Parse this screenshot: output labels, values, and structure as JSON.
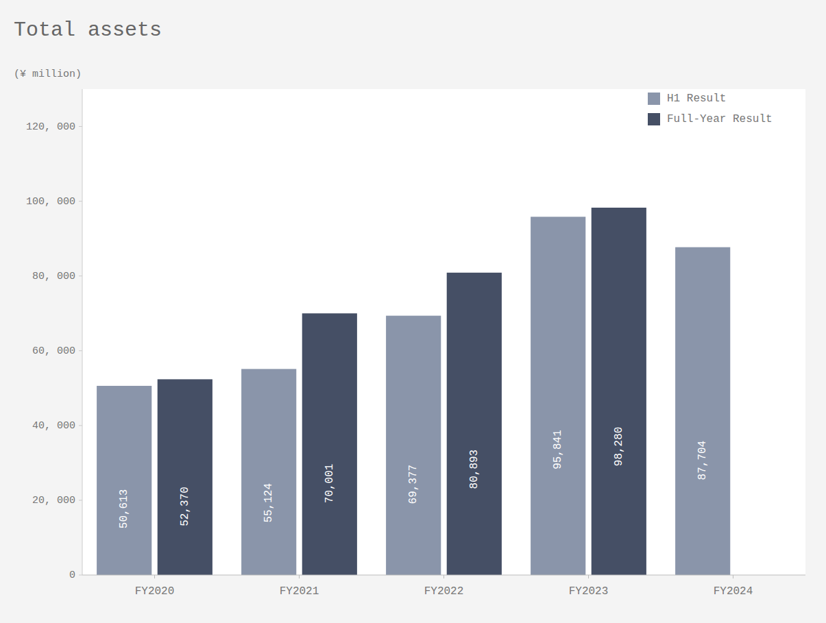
{
  "chart_data": {
    "type": "bar",
    "title": "Total assets",
    "ylabel": "(¥ million)",
    "categories": [
      "FY2020",
      "FY2021",
      "FY2022",
      "FY2023",
      "FY2024"
    ],
    "series": [
      {
        "name": "H1 Result",
        "color": "#8a95aa",
        "values": [
          50613,
          55124,
          69377,
          95841,
          87704
        ],
        "value_labels": [
          "50,613",
          "55,124",
          "69,377",
          "95,841",
          "87,704"
        ]
      },
      {
        "name": "Full-Year Result",
        "color": "#454f65",
        "values": [
          52370,
          70001,
          80893,
          98280,
          null
        ],
        "value_labels": [
          "52,370",
          "70,001",
          "80,893",
          "98,280",
          null
        ]
      }
    ],
    "ylim": [
      0,
      130000
    ],
    "yticks": [
      0,
      {
        "value": 20000,
        "label": "20, 000"
      },
      {
        "value": 40000,
        "label": "40, 000"
      },
      {
        "value": 60000,
        "label": "60, 000"
      },
      {
        "value": 80000,
        "label": "80, 000"
      },
      {
        "value": 100000,
        "label": "100, 000"
      },
      {
        "value": 120000,
        "label": "120, 000"
      }
    ],
    "grid": false,
    "legend": "upper right",
    "data_labels": true
  }
}
